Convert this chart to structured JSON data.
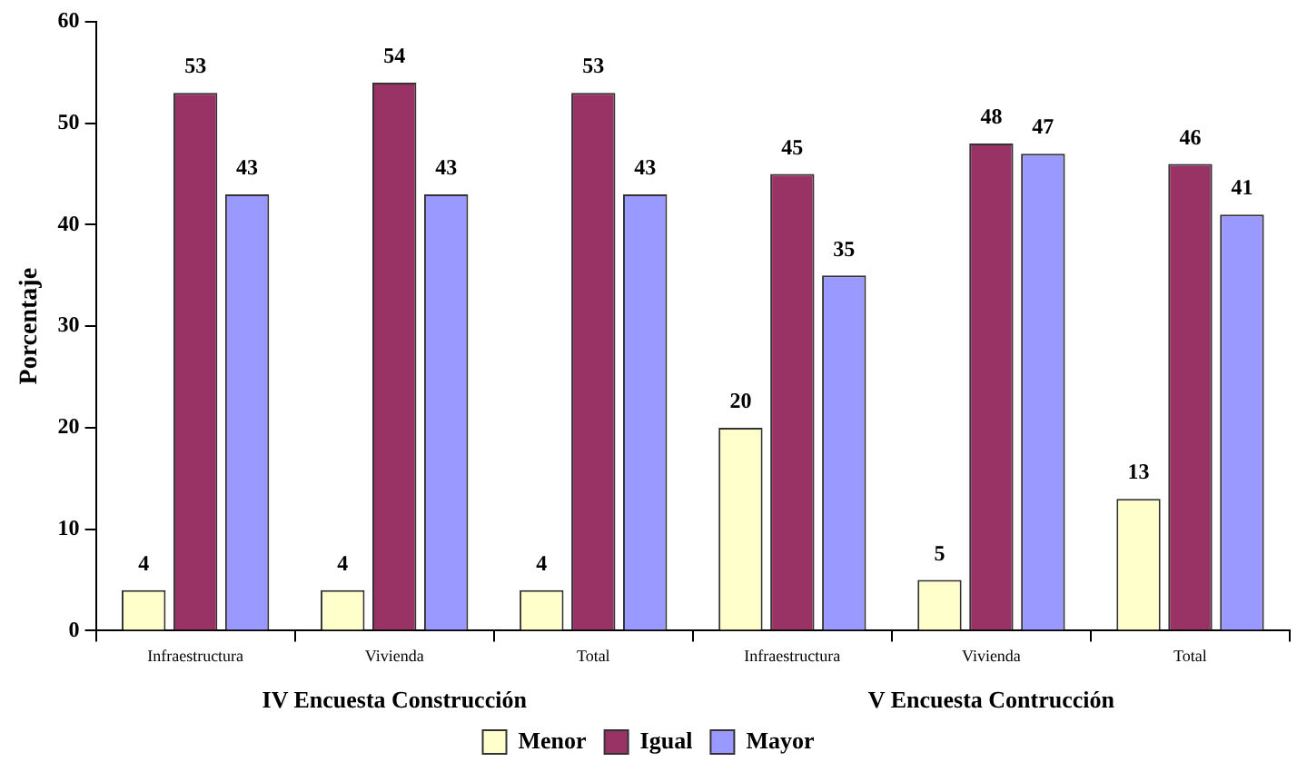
{
  "chart_data": {
    "type": "bar",
    "ylabel": "Porcentaje",
    "categories": [
      "Infraestructura",
      "Vivienda",
      "Total",
      "Infraestructura",
      "Vivienda",
      "Total"
    ],
    "series": [
      {
        "name": "Menor",
        "color": "#ffffcc",
        "values": [
          4,
          4,
          4,
          20,
          5,
          13
        ]
      },
      {
        "name": "Igual",
        "color": "#993366",
        "values": [
          53,
          54,
          53,
          45,
          48,
          46
        ]
      },
      {
        "name": "Mayor",
        "color": "#9999ff",
        "values": [
          43,
          43,
          43,
          35,
          47,
          41
        ]
      }
    ],
    "ylim": [
      0,
      60
    ],
    "yticks": [
      0,
      10,
      20,
      30,
      40,
      50,
      60
    ],
    "grid": false,
    "legend": "bottom",
    "data_labels": true,
    "annotations": [
      "IV Encuesta Construcción",
      "V Encuesta Contrucción"
    ]
  }
}
